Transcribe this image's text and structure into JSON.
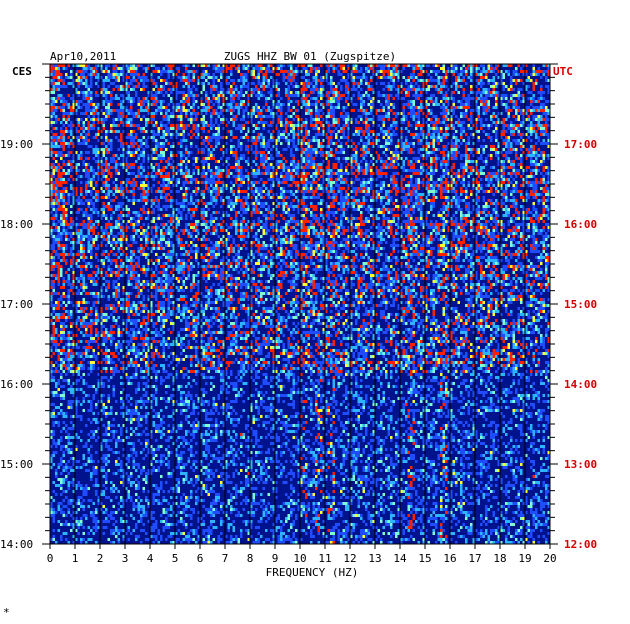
{
  "header": {
    "date": "Apr10,2011",
    "station": "ZUGS HHZ BW 01 (Zugspitze)",
    "left_zone": "CES",
    "right_zone": "UTC"
  },
  "footer": {
    "corner_mark": "*"
  },
  "colors": {
    "background": "#ffffff",
    "spectrogram_base": "#00128c",
    "utc_labels": "#d40000",
    "grid": "#000000"
  },
  "chart_data": {
    "type": "heatmap",
    "title": "ZUGS HHZ BW 01 (Zugspitze)",
    "xlabel": "FREQUENCY (HZ)",
    "ylabel": "",
    "xlim": [
      0,
      20
    ],
    "x_ticks": [
      "0",
      "1",
      "2",
      "3",
      "4",
      "5",
      "6",
      "7",
      "8",
      "9",
      "10",
      "11",
      "12",
      "13",
      "14",
      "15",
      "16",
      "17",
      "18",
      "19",
      "20"
    ],
    "ylim_hours": [
      14,
      20
    ],
    "y_ticks_left": [
      "19:00",
      "18:00",
      "17:00",
      "16:00",
      "15:00",
      "14:00"
    ],
    "y_ticks_right": [
      "17:00",
      "16:00",
      "15:00",
      "14:00",
      "13:00",
      "12:00"
    ],
    "color_scale": [
      "#00128c",
      "#1f4cff",
      "#2db4ff",
      "#7fffd0",
      "#ffff30",
      "#ff2000"
    ],
    "noisy_start_hour": 16.15,
    "persistent_lines_hz": [
      10.1,
      10.7,
      11.2,
      14.4,
      15.7
    ]
  }
}
